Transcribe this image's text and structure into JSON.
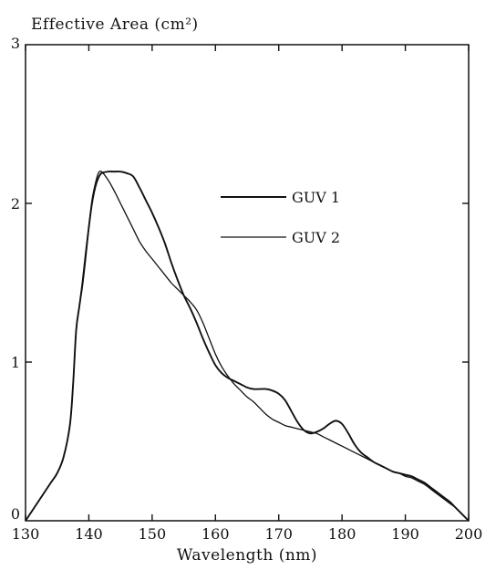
{
  "chart_data": {
    "type": "line",
    "title": "",
    "ylabel": "Effective Area (cm²)",
    "xlabel": "Wavelength (nm)",
    "xlim": [
      130,
      200
    ],
    "ylim": [
      0,
      3
    ],
    "xticks": [
      130,
      140,
      150,
      160,
      170,
      180,
      190,
      200
    ],
    "yticks": [
      0,
      1,
      2,
      3
    ],
    "grid": false,
    "legend_position": "upper-right (inside plot)",
    "series": [
      {
        "name": "GUV 1",
        "color": "#111111",
        "x": [
          130,
          132,
          134,
          135,
          136,
          137,
          137.5,
          138,
          138.5,
          139,
          139.5,
          140,
          140.5,
          141,
          141.5,
          142,
          143,
          144,
          145,
          146,
          147,
          148,
          149,
          150,
          151,
          152,
          153,
          154,
          155,
          156,
          157,
          158,
          159,
          160,
          161,
          162,
          163,
          164,
          165,
          166,
          167,
          168,
          169,
          170,
          171,
          172,
          173,
          174,
          175,
          176,
          177,
          178,
          179,
          180,
          181,
          182,
          183,
          184,
          185,
          186,
          187,
          188,
          189,
          190,
          191,
          192,
          193,
          194,
          195,
          196,
          197,
          198,
          199,
          200
        ],
        "values": [
          0.0,
          0.12,
          0.24,
          0.3,
          0.4,
          0.6,
          0.85,
          1.2,
          1.35,
          1.5,
          1.68,
          1.85,
          2.0,
          2.1,
          2.16,
          2.19,
          2.2,
          2.2,
          2.2,
          2.19,
          2.17,
          2.1,
          2.02,
          1.94,
          1.85,
          1.75,
          1.63,
          1.52,
          1.42,
          1.34,
          1.25,
          1.15,
          1.06,
          0.98,
          0.93,
          0.9,
          0.88,
          0.86,
          0.84,
          0.83,
          0.83,
          0.83,
          0.82,
          0.8,
          0.76,
          0.69,
          0.62,
          0.57,
          0.55,
          0.56,
          0.58,
          0.61,
          0.63,
          0.61,
          0.55,
          0.48,
          0.43,
          0.4,
          0.37,
          0.35,
          0.33,
          0.31,
          0.3,
          0.29,
          0.28,
          0.26,
          0.24,
          0.21,
          0.18,
          0.15,
          0.12,
          0.08,
          0.04,
          0.0
        ]
      },
      {
        "name": "GUV 2",
        "color": "#111111",
        "x": [
          130,
          132,
          134,
          135,
          136,
          137,
          137.5,
          138,
          138.5,
          139,
          139.5,
          140,
          140.5,
          141,
          141.5,
          142,
          143,
          144,
          145,
          146,
          147,
          148,
          149,
          150,
          151,
          152,
          153,
          154,
          155,
          156,
          157,
          158,
          159,
          160,
          161,
          162,
          163,
          164,
          165,
          166,
          167,
          168,
          169,
          170,
          171,
          172,
          173,
          174,
          175,
          176,
          177,
          178,
          179,
          180,
          181,
          182,
          183,
          184,
          185,
          186,
          187,
          188,
          189,
          190,
          191,
          192,
          193,
          194,
          195,
          196,
          197,
          198,
          199,
          200
        ],
        "values": [
          0.0,
          0.12,
          0.24,
          0.3,
          0.4,
          0.6,
          0.85,
          1.2,
          1.35,
          1.48,
          1.65,
          1.85,
          2.02,
          2.12,
          2.19,
          2.2,
          2.15,
          2.08,
          2.0,
          1.92,
          1.84,
          1.76,
          1.7,
          1.65,
          1.6,
          1.55,
          1.5,
          1.46,
          1.42,
          1.38,
          1.33,
          1.25,
          1.15,
          1.05,
          0.97,
          0.91,
          0.86,
          0.82,
          0.78,
          0.75,
          0.71,
          0.67,
          0.64,
          0.62,
          0.6,
          0.59,
          0.58,
          0.57,
          0.56,
          0.55,
          0.53,
          0.51,
          0.49,
          0.47,
          0.45,
          0.43,
          0.41,
          0.39,
          0.37,
          0.35,
          0.33,
          0.31,
          0.3,
          0.28,
          0.27,
          0.25,
          0.23,
          0.2,
          0.17,
          0.14,
          0.11,
          0.08,
          0.04,
          0.0
        ]
      }
    ]
  }
}
